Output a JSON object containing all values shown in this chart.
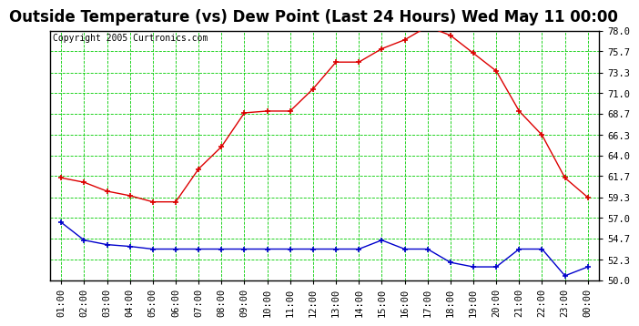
{
  "title": "Outside Temperature (vs) Dew Point (Last 24 Hours) Wed May 11 00:00",
  "copyright": "Copyright 2005 Curtronics.com",
  "x_labels": [
    "01:00",
    "02:00",
    "03:00",
    "04:00",
    "05:00",
    "06:00",
    "07:00",
    "08:00",
    "09:00",
    "10:00",
    "11:00",
    "12:00",
    "13:00",
    "14:00",
    "15:00",
    "16:00",
    "17:00",
    "18:00",
    "19:00",
    "20:00",
    "21:00",
    "22:00",
    "23:00",
    "00:00"
  ],
  "temp_data": [
    61.5,
    61.0,
    60.0,
    59.5,
    58.8,
    58.8,
    62.5,
    65.0,
    68.8,
    69.0,
    69.0,
    71.5,
    74.5,
    74.5,
    76.0,
    77.0,
    78.5,
    77.5,
    75.5,
    73.5,
    69.0,
    66.3,
    61.5,
    59.3
  ],
  "dew_data": [
    56.5,
    54.5,
    54.0,
    53.8,
    53.5,
    53.5,
    53.5,
    53.5,
    53.5,
    53.5,
    53.5,
    53.5,
    53.5,
    53.5,
    54.5,
    53.5,
    53.5,
    52.0,
    51.5,
    51.5,
    53.5,
    53.5,
    50.5,
    51.5
  ],
  "temp_color": "#dd0000",
  "dew_color": "#0000cc",
  "grid_color": "#00cc00",
  "bg_color": "#ffffff",
  "ymin": 50.0,
  "ymax": 78.0,
  "yticks": [
    50.0,
    52.3,
    54.7,
    57.0,
    59.3,
    61.7,
    64.0,
    66.3,
    68.7,
    71.0,
    73.3,
    75.7,
    78.0
  ],
  "title_fontsize": 12,
  "copyright_fontsize": 7,
  "tick_fontsize": 7.5
}
